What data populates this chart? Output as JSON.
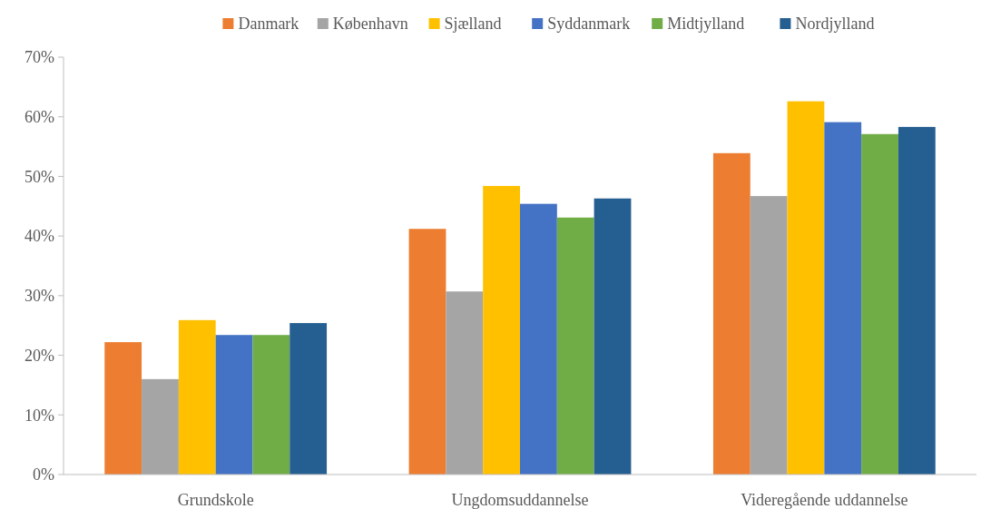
{
  "chart_data": {
    "type": "bar",
    "categories": [
      "Grundskole",
      "Ungdomsuddannelse",
      "Videregående uddannelse"
    ],
    "series": [
      {
        "name": "Danmark",
        "color": "#ed7d31",
        "values": [
          0.222,
          0.412,
          0.539
        ]
      },
      {
        "name": "København",
        "color": "#a5a5a5",
        "values": [
          0.16,
          0.307,
          0.467
        ]
      },
      {
        "name": "Sjælland",
        "color": "#ffc000",
        "values": [
          0.259,
          0.484,
          0.626
        ]
      },
      {
        "name": "Syddanmark",
        "color": "#4472c4",
        "values": [
          0.234,
          0.454,
          0.591
        ]
      },
      {
        "name": "Midtjylland",
        "color": "#70ad47",
        "values": [
          0.234,
          0.431,
          0.571
        ]
      },
      {
        "name": "Nordjylland",
        "color": "#255e91",
        "values": [
          0.254,
          0.463,
          0.583
        ]
      }
    ],
    "ylim": [
      0,
      0.7
    ],
    "yticks": [
      {
        "value": 0,
        "label": "0%"
      },
      {
        "value": 0.1,
        "label": "10%"
      },
      {
        "value": 0.2,
        "label": "20%"
      },
      {
        "value": 0.3,
        "label": "30%"
      },
      {
        "value": 0.4,
        "label": "40%"
      },
      {
        "value": 0.5,
        "label": "50%"
      },
      {
        "value": 0.6,
        "label": "60%"
      },
      {
        "value": 0.7,
        "label": "70%"
      }
    ],
    "grid": false,
    "legend": "top"
  }
}
